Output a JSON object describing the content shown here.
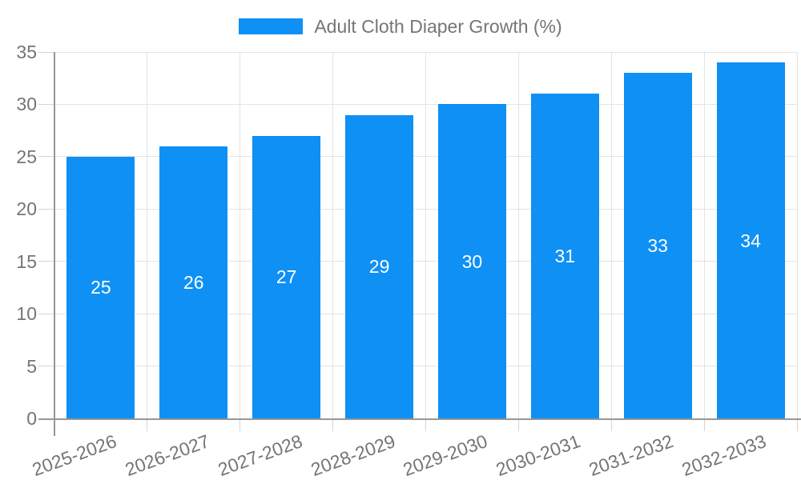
{
  "chart_data": {
    "type": "bar",
    "title": "Adult Cloth Diaper Growth (%)",
    "legend": [
      "Adult Cloth Diaper Growth (%)"
    ],
    "legend_position": "top",
    "categories": [
      "2025-2026",
      "2026-2027",
      "2027-2028",
      "2028-2029",
      "2029-2030",
      "2030-2031",
      "2031-2032",
      "2032-2033"
    ],
    "values": [
      25,
      26,
      27,
      29,
      30,
      31,
      33,
      34
    ],
    "y_ticks": [
      0,
      5,
      10,
      15,
      20,
      25,
      30,
      35
    ],
    "ylim": [
      0,
      35
    ],
    "xlabel": "",
    "ylabel": "",
    "grid": true,
    "x_label_rotation_deg": -20,
    "colors": {
      "bar": "#0E90F5",
      "value_label": "#FFFFFF",
      "axis_text": "#757575",
      "grid_line": "#E4E4E4",
      "tick_line": "#D4D4D4",
      "axis_line": "#979797",
      "background": "#FFFFFF"
    }
  }
}
